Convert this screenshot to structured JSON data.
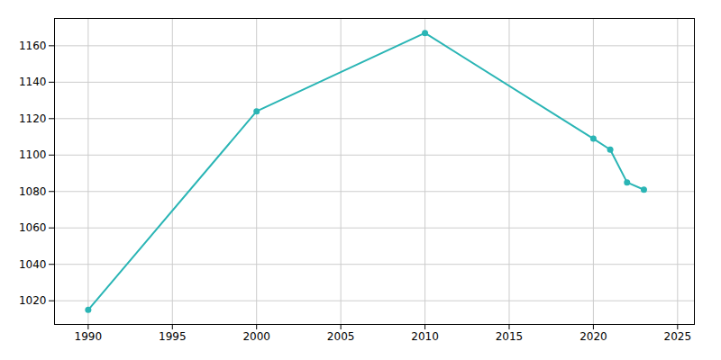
{
  "chart_data": {
    "type": "line",
    "x": [
      1990,
      2000,
      2010,
      2020,
      2021,
      2022,
      2023
    ],
    "values": [
      1015,
      1124,
      1167,
      1109,
      1103,
      1085,
      1081
    ],
    "color": "#2ab5b5",
    "marker": "circle",
    "xlim": [
      1988,
      2026
    ],
    "ylim": [
      1007,
      1175
    ],
    "xticks": [
      1990,
      1995,
      2000,
      2005,
      2010,
      2015,
      2020,
      2025
    ],
    "yticks": [
      1020,
      1040,
      1060,
      1080,
      1100,
      1120,
      1140,
      1160
    ],
    "grid": true
  }
}
